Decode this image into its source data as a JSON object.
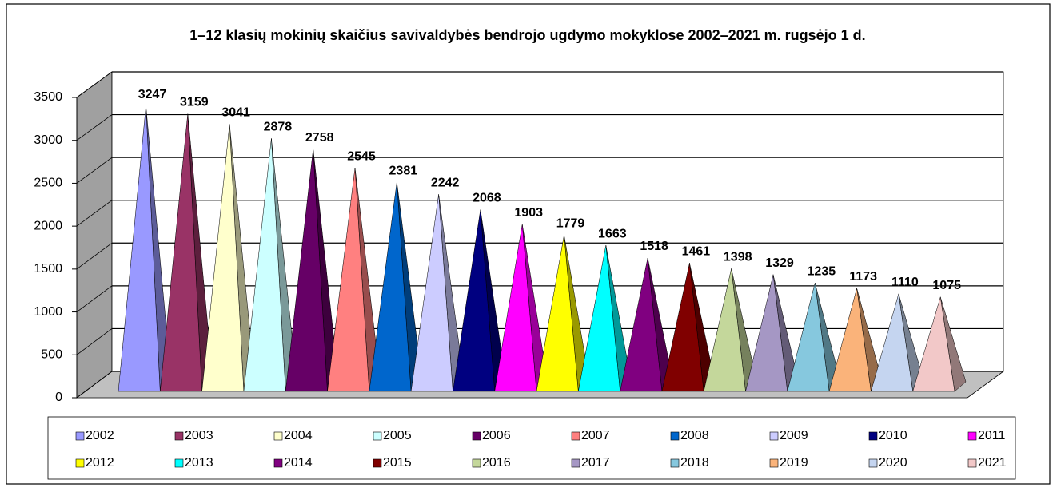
{
  "chart_data": {
    "type": "pyramid",
    "title": "1–12 klasių mokinių skaičius savivaldybės bendrojo ugdymo mokyklose 2002–2021 m. rugsėjo 1 d.",
    "categories": [
      "2002",
      "2003",
      "2004",
      "2005",
      "2006",
      "2007",
      "2008",
      "2009",
      "2010",
      "2011",
      "2012",
      "2013",
      "2014",
      "2015",
      "2016",
      "2017",
      "2018",
      "2019",
      "2020",
      "2021"
    ],
    "values": [
      3247,
      3159,
      3041,
      2878,
      2758,
      2545,
      2381,
      2242,
      2068,
      1903,
      1779,
      1663,
      1518,
      1461,
      1398,
      1329,
      1235,
      1173,
      1110,
      1075
    ],
    "colors": [
      "#9999ff",
      "#993366",
      "#ffffcc",
      "#ccffff",
      "#660066",
      "#ff8080",
      "#0066cc",
      "#ccccff",
      "#000080",
      "#ff00ff",
      "#ffff00",
      "#00ffff",
      "#800080",
      "#800000",
      "#c4d79b",
      "#a597c4",
      "#86c8de",
      "#fab37a",
      "#c5d5f0",
      "#f2c8c8"
    ],
    "ylim": [
      0,
      3500
    ],
    "yticks": [
      0,
      500,
      1000,
      1500,
      2000,
      2500,
      3000,
      3500
    ],
    "grid": true
  }
}
